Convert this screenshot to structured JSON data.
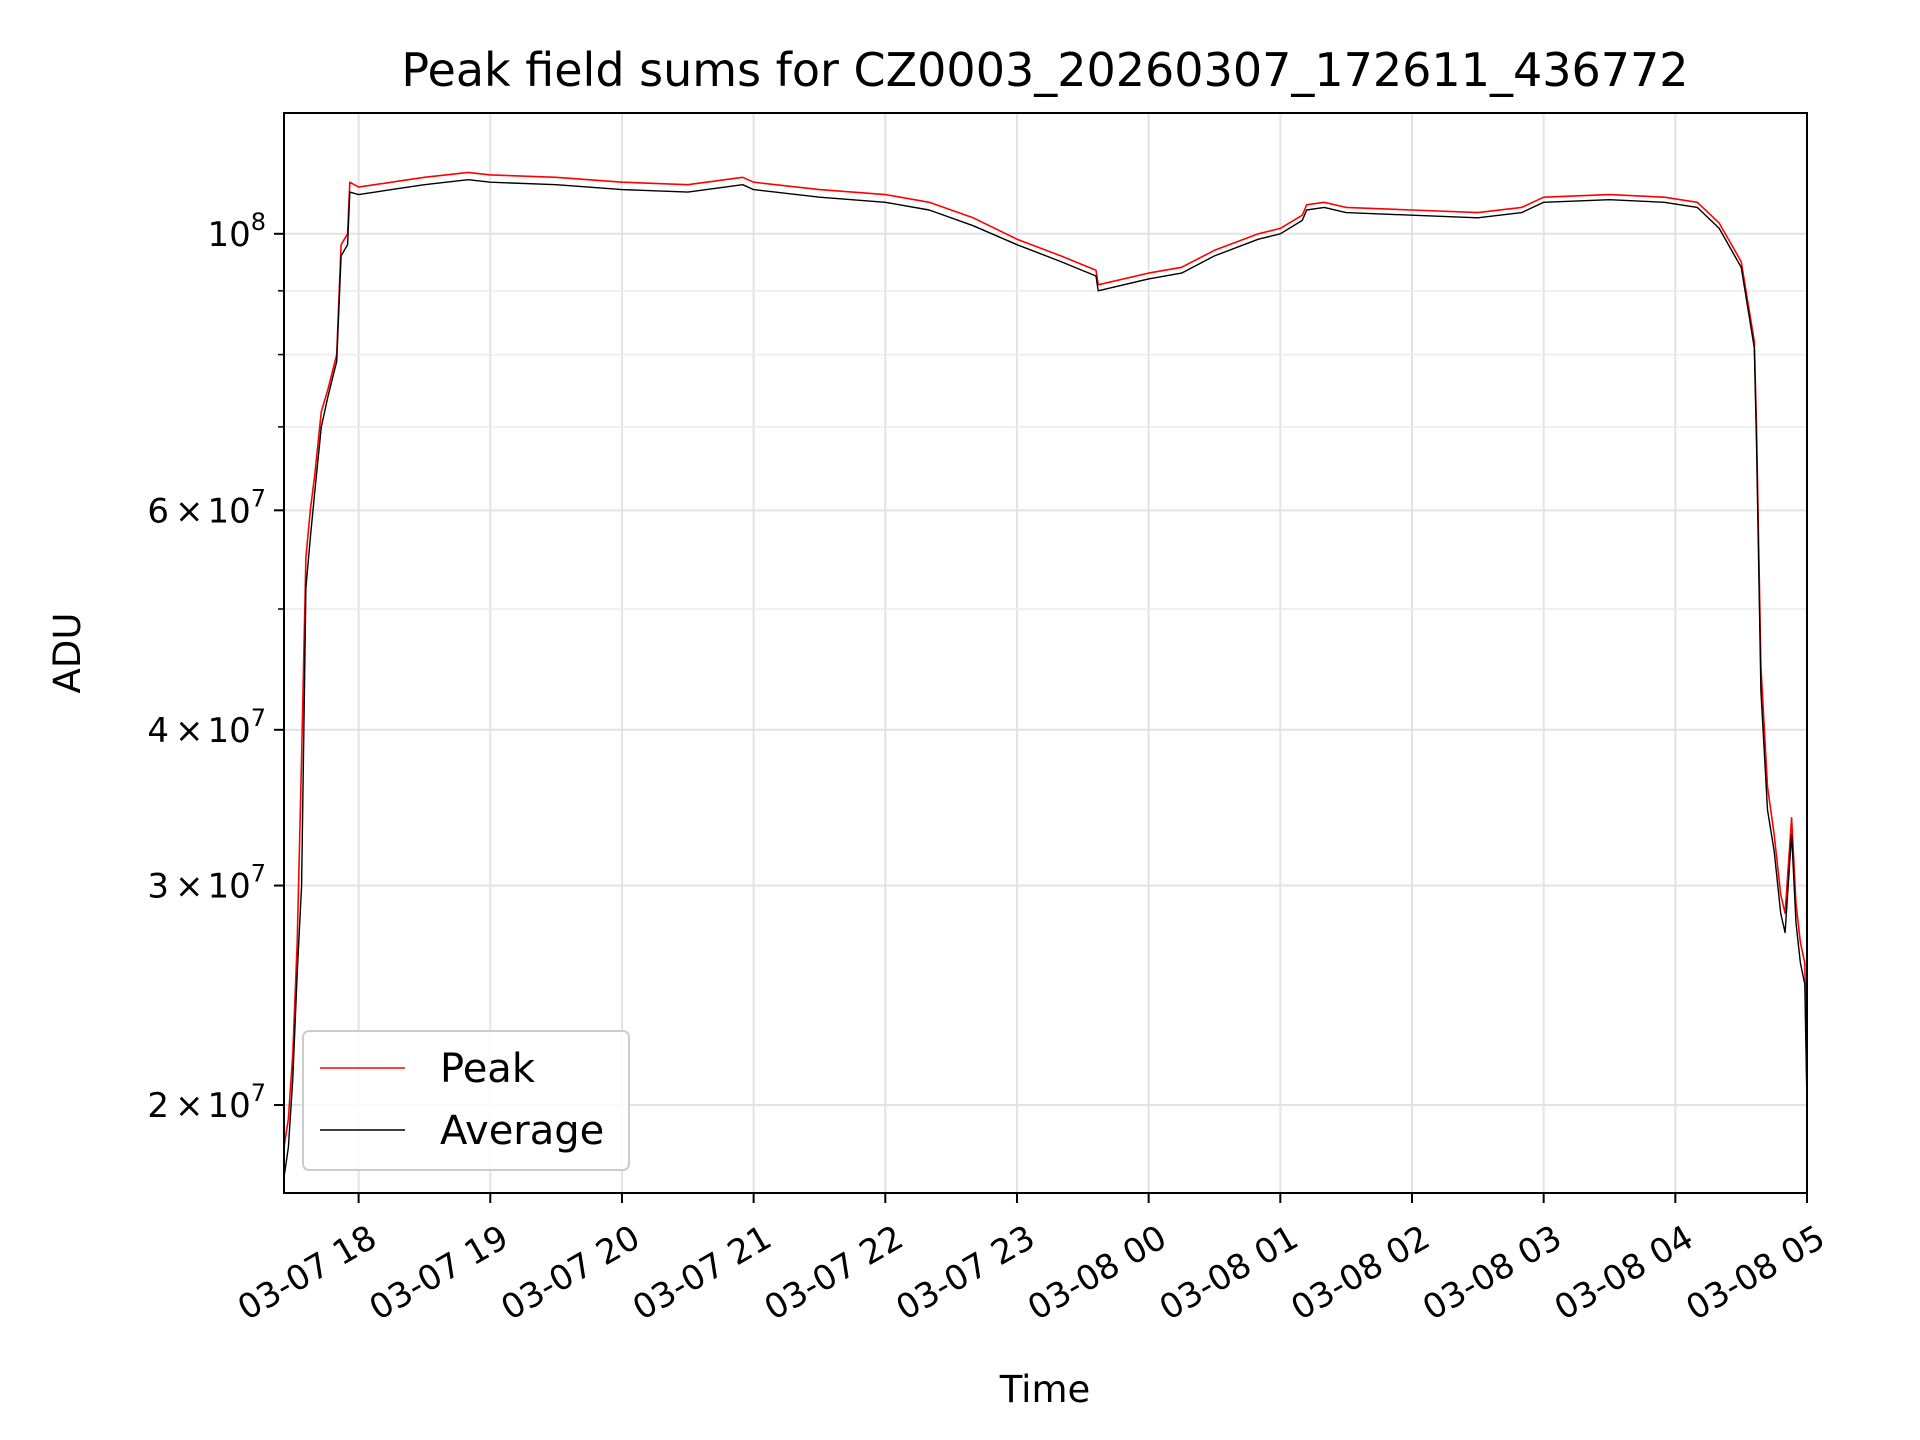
{
  "chart_data": {
    "type": "line",
    "title": "Peak field sums for CZ0003_20260307_172611_436772",
    "xlabel": "Time",
    "ylabel": "ADU",
    "y_scale": "log",
    "ylim": [
      17000000,
      125000000
    ],
    "xlim": [
      "2026-03-07 17:26",
      "2026-03-08 05:00"
    ],
    "grid": true,
    "legend_position": "lower-left",
    "x_ticks": [
      {
        "t": "2026-03-07 18:00",
        "label": "03-07 18"
      },
      {
        "t": "2026-03-07 19:00",
        "label": "03-07 19"
      },
      {
        "t": "2026-03-07 20:00",
        "label": "03-07 20"
      },
      {
        "t": "2026-03-07 21:00",
        "label": "03-07 21"
      },
      {
        "t": "2026-03-07 22:00",
        "label": "03-07 22"
      },
      {
        "t": "2026-03-07 23:00",
        "label": "03-07 23"
      },
      {
        "t": "2026-03-08 00:00",
        "label": "03-08 00"
      },
      {
        "t": "2026-03-08 01:00",
        "label": "03-08 01"
      },
      {
        "t": "2026-03-08 02:00",
        "label": "03-08 02"
      },
      {
        "t": "2026-03-08 03:00",
        "label": "03-08 03"
      },
      {
        "t": "2026-03-08 04:00",
        "label": "03-08 04"
      },
      {
        "t": "2026-03-08 05:00",
        "label": "03-08 05"
      }
    ],
    "y_ticks": [
      {
        "value": 20000000,
        "mantissa": "2",
        "base": "10",
        "exp": "7"
      },
      {
        "value": 30000000,
        "mantissa": "3",
        "base": "10",
        "exp": "7"
      },
      {
        "value": 40000000,
        "mantissa": "4",
        "base": "10",
        "exp": "7"
      },
      {
        "value": 60000000,
        "mantissa": "6",
        "base": "10",
        "exp": "7"
      },
      {
        "value": 100000000,
        "mantissa": "",
        "base": "10",
        "exp": "8"
      }
    ],
    "y_minor_ticks": [
      50000000,
      70000000,
      80000000,
      90000000
    ],
    "series": [
      {
        "name": "Peak",
        "color": "#ff0000",
        "x": [
          "2026-03-07 17:26",
          "2026-03-07 17:28",
          "2026-03-07 17:30",
          "2026-03-07 17:32",
          "2026-03-07 17:34",
          "2026-03-07 17:36",
          "2026-03-07 17:38",
          "2026-03-07 17:40",
          "2026-03-07 17:43",
          "2026-03-07 17:46",
          "2026-03-07 17:50",
          "2026-03-07 17:52",
          "2026-03-07 17:55",
          "2026-03-07 17:56",
          "2026-03-07 18:00",
          "2026-03-07 18:15",
          "2026-03-07 18:30",
          "2026-03-07 18:50",
          "2026-03-07 19:00",
          "2026-03-07 19:30",
          "2026-03-07 20:00",
          "2026-03-07 20:30",
          "2026-03-07 20:55",
          "2026-03-07 21:00",
          "2026-03-07 21:30",
          "2026-03-07 22:00",
          "2026-03-07 22:20",
          "2026-03-07 22:40",
          "2026-03-07 23:00",
          "2026-03-07 23:20",
          "2026-03-07 23:36",
          "2026-03-07 23:37",
          "2026-03-08 00:00",
          "2026-03-08 00:15",
          "2026-03-08 00:30",
          "2026-03-08 00:50",
          "2026-03-08 01:00",
          "2026-03-08 01:10",
          "2026-03-08 01:11",
          "2026-03-08 01:12",
          "2026-03-08 01:20",
          "2026-03-08 01:30",
          "2026-03-08 02:00",
          "2026-03-08 02:30",
          "2026-03-08 02:50",
          "2026-03-08 03:00",
          "2026-03-08 03:30",
          "2026-03-08 03:55",
          "2026-03-08 04:10",
          "2026-03-08 04:20",
          "2026-03-08 04:30",
          "2026-03-08 04:36",
          "2026-03-08 04:37",
          "2026-03-08 04:39",
          "2026-03-08 04:42",
          "2026-03-08 04:45",
          "2026-03-08 04:48",
          "2026-03-08 04:50",
          "2026-03-08 04:53",
          "2026-03-08 04:55",
          "2026-03-08 04:57",
          "2026-03-08 04:59",
          "2026-03-08 05:00"
        ],
        "values": [
          18500000,
          19500000,
          22000000,
          27000000,
          38000000,
          55000000,
          60000000,
          64000000,
          72000000,
          75000000,
          80000000,
          98000000,
          100000000,
          110000000,
          109000000,
          110000000,
          111000000,
          112000000,
          111500000,
          111000000,
          110000000,
          109500000,
          111000000,
          110000000,
          108500000,
          107500000,
          106000000,
          103000000,
          99000000,
          96000000,
          93500000,
          91000000,
          93000000,
          94000000,
          97000000,
          100000000,
          101000000,
          103500000,
          104500000,
          105500000,
          106000000,
          105000000,
          104500000,
          104000000,
          105000000,
          107000000,
          107500000,
          107000000,
          106000000,
          102000000,
          95000000,
          82000000,
          70000000,
          45000000,
          36000000,
          33000000,
          29500000,
          28500000,
          34000000,
          29000000,
          27000000,
          26000000,
          20500000
        ]
      },
      {
        "name": "Average",
        "color": "#000000",
        "x": [
          "2026-03-07 17:26",
          "2026-03-07 17:28",
          "2026-03-07 17:30",
          "2026-03-07 17:32",
          "2026-03-07 17:34",
          "2026-03-07 17:36",
          "2026-03-07 17:38",
          "2026-03-07 17:40",
          "2026-03-07 17:43",
          "2026-03-07 17:46",
          "2026-03-07 17:50",
          "2026-03-07 17:52",
          "2026-03-07 17:55",
          "2026-03-07 17:56",
          "2026-03-07 18:00",
          "2026-03-07 18:15",
          "2026-03-07 18:30",
          "2026-03-07 18:50",
          "2026-03-07 19:00",
          "2026-03-07 19:30",
          "2026-03-07 20:00",
          "2026-03-07 20:30",
          "2026-03-07 20:55",
          "2026-03-07 21:00",
          "2026-03-07 21:30",
          "2026-03-07 22:00",
          "2026-03-07 22:20",
          "2026-03-07 22:40",
          "2026-03-07 23:00",
          "2026-03-07 23:20",
          "2026-03-07 23:36",
          "2026-03-07 23:37",
          "2026-03-08 00:00",
          "2026-03-08 00:15",
          "2026-03-08 00:30",
          "2026-03-08 00:50",
          "2026-03-08 01:00",
          "2026-03-08 01:10",
          "2026-03-08 01:11",
          "2026-03-08 01:12",
          "2026-03-08 01:20",
          "2026-03-08 01:30",
          "2026-03-08 02:00",
          "2026-03-08 02:30",
          "2026-03-08 02:50",
          "2026-03-08 03:00",
          "2026-03-08 03:30",
          "2026-03-08 03:55",
          "2026-03-08 04:10",
          "2026-03-08 04:20",
          "2026-03-08 04:30",
          "2026-03-08 04:36",
          "2026-03-08 04:37",
          "2026-03-08 04:39",
          "2026-03-08 04:42",
          "2026-03-08 04:45",
          "2026-03-08 04:48",
          "2026-03-08 04:50",
          "2026-03-08 04:53",
          "2026-03-08 04:55",
          "2026-03-08 04:57",
          "2026-03-08 04:59",
          "2026-03-08 05:00"
        ],
        "values": [
          17500000,
          18500000,
          21000000,
          25500000,
          30000000,
          52000000,
          57000000,
          62000000,
          70000000,
          74000000,
          79000000,
          96000000,
          98000000,
          108000000,
          107500000,
          108500000,
          109500000,
          110500000,
          110000000,
          109500000,
          108500000,
          108000000,
          109500000,
          108500000,
          107000000,
          106000000,
          104500000,
          101500000,
          98000000,
          95000000,
          92500000,
          90000000,
          92000000,
          93000000,
          96000000,
          99000000,
          100000000,
          102500000,
          103500000,
          104500000,
          105000000,
          104000000,
          103500000,
          103000000,
          104000000,
          106000000,
          106500000,
          106000000,
          105000000,
          101000000,
          94000000,
          81000000,
          68000000,
          43000000,
          34500000,
          32000000,
          28500000,
          27500000,
          33000000,
          28000000,
          26000000,
          25000000,
          20000000
        ]
      }
    ]
  }
}
